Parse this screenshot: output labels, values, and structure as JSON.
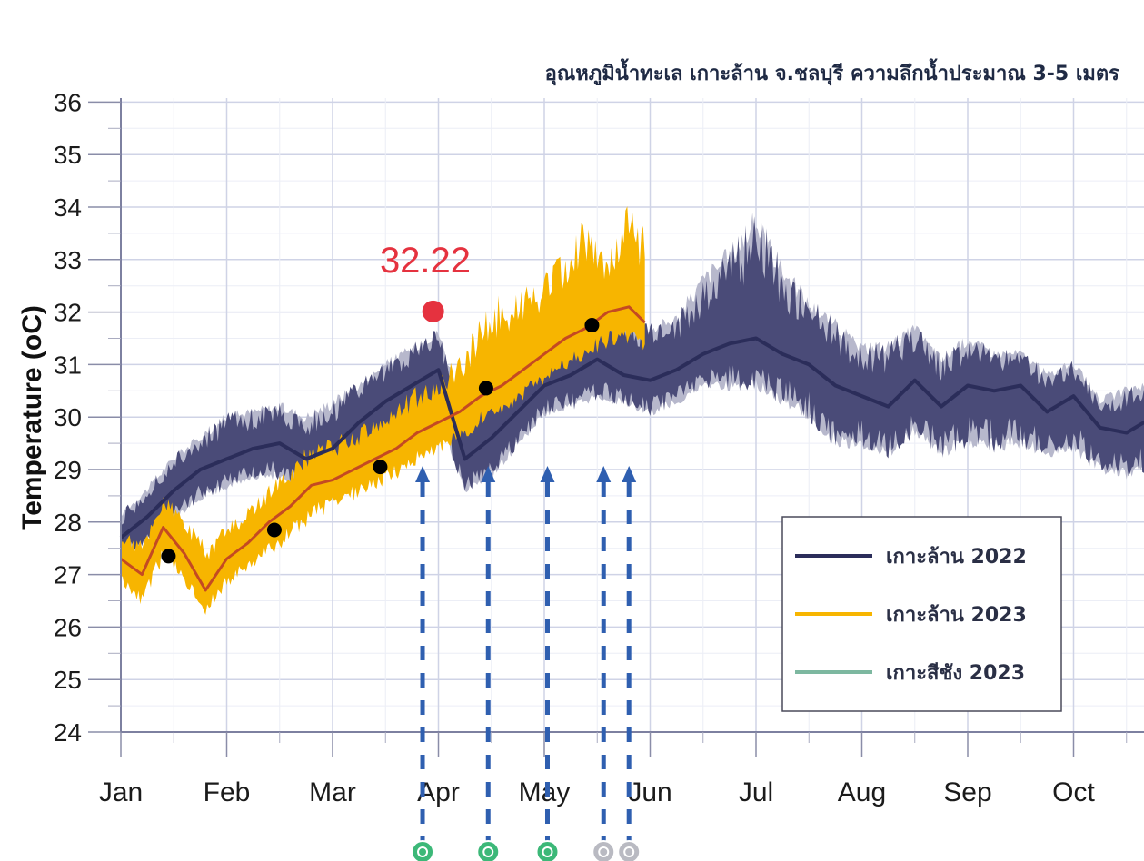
{
  "chart_data": {
    "type": "line",
    "title": "อุณหภูมิน้ำทะเล เกาะล้าน จ.ชลบุรี ความลึกน้ำประมาณ 3-5 เมตร",
    "ylabel": "Temperature (oC)",
    "xlabel": "",
    "ylim": [
      24,
      36
    ],
    "yticks": [
      "24",
      "25",
      "26",
      "27",
      "28",
      "29",
      "30",
      "31",
      "32",
      "33",
      "34",
      "35",
      "36"
    ],
    "xticks": [
      "Jan",
      "Feb",
      "Mar",
      "Apr",
      "May",
      "Jun",
      "Jul",
      "Aug",
      "Sep",
      "Oct"
    ],
    "grid": true,
    "legend_position": "bottom-right",
    "colors": {
      "koh_larn_2022_line": "#2b2d5a",
      "koh_larn_2022_band": "#4a4b78",
      "koh_larn_2022_band_light": "#b7b8cc",
      "koh_larn_2023_line": "#c44a22",
      "koh_larn_2023_band": "#f7b500",
      "koh_sichang_2023": "#7db8a0",
      "marker": "#000000",
      "annotation": "#e5323f",
      "arrow": "#2f5fb0"
    },
    "series": [
      {
        "name": "เกาะล้าน 2022",
        "x": [
          0.0,
          0.25,
          0.5,
          0.75,
          1.0,
          1.25,
          1.5,
          1.75,
          2.0,
          2.25,
          2.5,
          2.75,
          3.0,
          3.25,
          3.5,
          3.75,
          4.0,
          4.25,
          4.5,
          4.75,
          5.0,
          5.25,
          5.5,
          5.75,
          6.0,
          6.25,
          6.5,
          6.75,
          7.0,
          7.25,
          7.5,
          7.75,
          8.0,
          8.25,
          8.5,
          8.75,
          9.0,
          9.25,
          9.5,
          9.75,
          10.0
        ],
        "y": [
          27.7,
          28.1,
          28.6,
          29.0,
          29.2,
          29.4,
          29.5,
          29.2,
          29.4,
          29.9,
          30.3,
          30.6,
          30.9,
          29.2,
          29.6,
          30.1,
          30.6,
          30.8,
          31.1,
          30.8,
          30.7,
          30.9,
          31.2,
          31.4,
          31.5,
          31.2,
          31.0,
          30.6,
          30.4,
          30.2,
          30.7,
          30.2,
          30.6,
          30.5,
          30.6,
          30.1,
          30.4,
          29.8,
          29.7,
          30.0,
          29.2
        ],
        "band_low": [
          27.3,
          27.6,
          28.0,
          28.4,
          28.6,
          28.8,
          28.8,
          28.5,
          28.6,
          29.1,
          29.4,
          29.7,
          29.9,
          28.5,
          28.8,
          29.4,
          30.0,
          30.1,
          30.3,
          30.2,
          30.0,
          30.2,
          30.5,
          30.5,
          30.5,
          30.2,
          29.9,
          29.4,
          29.4,
          29.2,
          29.6,
          29.2,
          29.4,
          29.3,
          29.4,
          29.2,
          29.3,
          28.9,
          28.8,
          29.0,
          28.5
        ],
        "band_high": [
          28.2,
          28.7,
          29.3,
          29.7,
          30.1,
          30.2,
          30.3,
          30.1,
          30.4,
          30.7,
          31.1,
          31.4,
          31.7,
          30.2,
          30.6,
          31.0,
          31.4,
          31.8,
          32.5,
          32.0,
          31.8,
          32.0,
          32.8,
          33.3,
          34.0,
          33.0,
          32.3,
          31.9,
          31.4,
          31.5,
          31.8,
          31.2,
          31.6,
          31.3,
          31.3,
          30.9,
          31.1,
          30.4,
          30.6,
          30.8,
          30.3
        ]
      },
      {
        "name": "เกาะล้าน 2023",
        "x": [
          0.0,
          0.2,
          0.4,
          0.6,
          0.8,
          1.0,
          1.2,
          1.4,
          1.6,
          1.8,
          2.0,
          2.2,
          2.4,
          2.6,
          2.8,
          3.0,
          3.2,
          3.4,
          3.6,
          3.8,
          4.0,
          4.2,
          4.4,
          4.6,
          4.8,
          4.95
        ],
        "y": [
          27.3,
          27.0,
          27.9,
          27.4,
          26.7,
          27.3,
          27.6,
          28.0,
          28.3,
          28.7,
          28.8,
          29.0,
          29.2,
          29.4,
          29.7,
          29.9,
          30.1,
          30.4,
          30.6,
          30.9,
          31.2,
          31.5,
          31.7,
          32.0,
          32.1,
          31.8
        ],
        "band_low": [
          26.8,
          26.4,
          27.2,
          26.8,
          26.2,
          26.7,
          27.0,
          27.3,
          27.6,
          28.0,
          28.2,
          28.4,
          28.6,
          28.8,
          29.1,
          29.3,
          29.5,
          29.8,
          30.0,
          30.3,
          30.6,
          30.9,
          31.1,
          31.3,
          31.4,
          31.2
        ],
        "band_high": [
          27.8,
          27.7,
          28.6,
          28.2,
          27.6,
          28.0,
          28.3,
          28.7,
          29.2,
          29.5,
          29.6,
          29.8,
          30.0,
          30.3,
          30.6,
          30.8,
          31.2,
          32.0,
          32.6,
          32.5,
          32.8,
          33.3,
          33.9,
          33.1,
          34.1,
          33.6
        ]
      },
      {
        "name": "เกาะสีชัง 2023",
        "x": [],
        "y": []
      }
    ],
    "monthly_markers": {
      "x": [
        0.45,
        1.45,
        2.45,
        3.45,
        4.45
      ],
      "y": [
        27.35,
        27.85,
        29.05,
        30.55,
        31.75
      ]
    },
    "annotation": {
      "text": "32.22",
      "x": 2.95,
      "y": 32.22
    },
    "arrows": {
      "x": [
        2.85,
        3.47,
        4.03,
        4.56,
        4.8
      ],
      "y_top": 29.0,
      "colors": [
        "#2f5fb0",
        "#2f5fb0",
        "#2f5fb0",
        "#2f5fb0",
        "#2f5fb0"
      ],
      "badge_colors": [
        "#3cb878",
        "#3cb878",
        "#3cb878",
        "#b9bac2",
        "#b9bac2"
      ]
    }
  }
}
